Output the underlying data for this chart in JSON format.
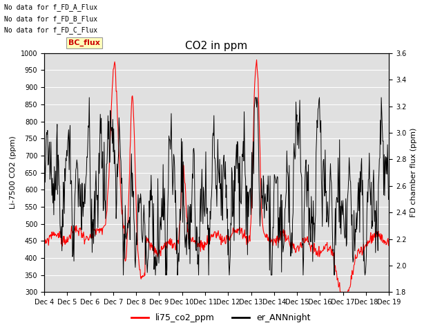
{
  "title": "CO2 in ppm",
  "ylabel_left": "Li-7500 CO2 (ppm)",
  "ylabel_right": "FD chamber flux (ppm)",
  "ylim_left": [
    300,
    1000
  ],
  "ylim_right": [
    1.8,
    3.6
  ],
  "yticks_left": [
    300,
    350,
    400,
    450,
    500,
    550,
    600,
    650,
    700,
    750,
    800,
    850,
    900,
    950,
    1000
  ],
  "yticks_right": [
    1.8,
    2.0,
    2.2,
    2.4,
    2.6,
    2.8,
    3.0,
    3.2,
    3.4,
    3.6
  ],
  "xtick_labels": [
    "Dec 4",
    "Dec 5",
    "Dec 6",
    "Dec 7",
    "Dec 8",
    "Dec 9",
    "Dec 10",
    "Dec 11",
    "Dec 12",
    "Dec 13",
    "Dec 14",
    "Dec 15",
    "Dec 16",
    "Dec 17",
    "Dec 18",
    "Dec 19"
  ],
  "no_data_texts": [
    "No data for f_FD_A_Flux",
    "No data for f_FD_B_Flux",
    "No data for f_FD_C_Flux"
  ],
  "bc_flux_label": "BC_flux",
  "legend_entries": [
    "li75_co2_ppm",
    "er_ANNnight"
  ],
  "legend_colors": [
    "#ff0000",
    "#000000"
  ],
  "bg_color": "#e0e0e0",
  "grid_color": "#ffffff",
  "title_fontsize": 11,
  "label_fontsize": 8,
  "tick_fontsize": 7,
  "annot_fontsize": 7,
  "n_days": 15
}
